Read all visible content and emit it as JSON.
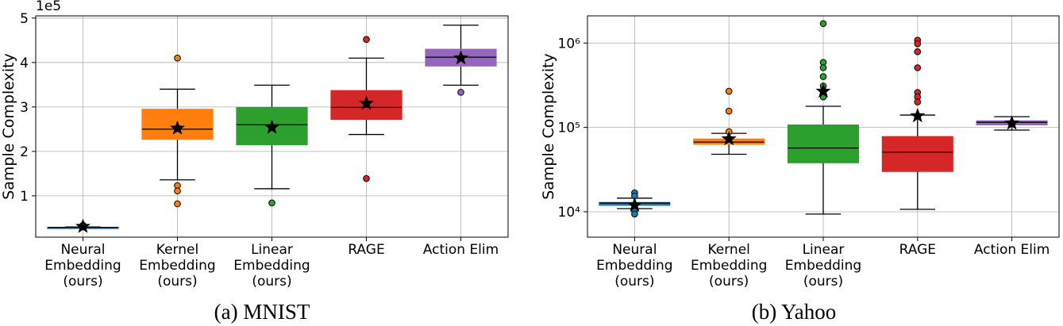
{
  "chart_data": [
    {
      "type": "box",
      "caption": "(a) MNIST",
      "ylabel": "Sample Complexity",
      "offset_text": "1e5",
      "yscale": "linear",
      "grid": true,
      "ylim": [
        0.07,
        5.05
      ],
      "yticks": [
        1,
        2,
        3,
        4,
        5
      ],
      "categories": [
        "Neural\nEmbedding\n(ours)",
        "Kernel\nEmbedding\n(ours)",
        "Linear\nEmbedding\n(ours)",
        "RAGE",
        "Action Elim"
      ],
      "boxes": [
        {
          "color": "#1f77b4",
          "whislo": 0.27,
          "q1": 0.28,
          "med": 0.29,
          "q3": 0.29,
          "whishi": 0.3,
          "mean": 0.31,
          "fliers": [
            0.34,
            0.33
          ]
        },
        {
          "color": "#ff7f0e",
          "whislo": 1.36,
          "q1": 2.27,
          "med": 2.5,
          "q3": 2.95,
          "whishi": 3.4,
          "mean": 2.52,
          "fliers": [
            4.1,
            1.23,
            1.11,
            0.82
          ]
        },
        {
          "color": "#2ca02c",
          "whislo": 1.16,
          "q1": 2.15,
          "med": 2.6,
          "q3": 2.99,
          "whishi": 3.49,
          "mean": 2.54,
          "fliers": [
            0.84
          ]
        },
        {
          "color": "#d62728",
          "whislo": 2.38,
          "q1": 2.72,
          "med": 2.99,
          "q3": 3.37,
          "whishi": 4.1,
          "mean": 3.08,
          "fliers": [
            4.52,
            1.39
          ]
        },
        {
          "color": "#9467bd",
          "whislo": 3.49,
          "q1": 3.92,
          "med": 4.12,
          "q3": 4.3,
          "whishi": 4.84,
          "mean": 4.1,
          "fliers": [
            3.33
          ]
        }
      ]
    },
    {
      "type": "box",
      "caption": "(b) Yahoo",
      "ylabel": "Sample Complexity",
      "yscale": "log",
      "grid": true,
      "ylim": [
        5000,
        2100000
      ],
      "yticks": [
        {
          "value": 10000,
          "label": "10⁴"
        },
        {
          "value": 100000,
          "label": "10⁵"
        },
        {
          "value": 1000000,
          "label": "10⁶"
        }
      ],
      "categories": [
        "Neural\nEmbedding\n(ours)",
        "Kernel\nEmbedding\n(ours)",
        "Linear\nEmbedding\n(ours)",
        "RAGE",
        "Action Elim"
      ],
      "boxes": [
        {
          "color": "#1f77b4",
          "whislo": 10900,
          "q1": 11900,
          "med": 12700,
          "q3": 12900,
          "whishi": 14500,
          "mean": 12000,
          "fliers": [
            16800,
            15400,
            10200,
            9400
          ]
        },
        {
          "color": "#ff7f0e",
          "whislo": 48000,
          "q1": 63000,
          "med": 67000,
          "q3": 73000,
          "whishi": 85000,
          "mean": 73000,
          "fliers": [
            268000,
            156000,
            89000
          ]
        },
        {
          "color": "#2ca02c",
          "whislo": 9400,
          "q1": 38000,
          "med": 57000,
          "q3": 107000,
          "whishi": 178000,
          "mean": 268000,
          "fliers": [
            1700000,
            590000,
            510000,
            400000,
            310000,
            270000,
            230000
          ]
        },
        {
          "color": "#d62728",
          "whislo": 10700,
          "q1": 30000,
          "med": 51000,
          "q3": 78000,
          "whishi": 140000,
          "mean": 137000,
          "fliers": [
            1080000,
            980000,
            790000,
            510000,
            260000,
            230000,
            200000
          ]
        },
        {
          "color": "#9467bd",
          "whislo": 93000,
          "q1": 107000,
          "med": 115000,
          "q3": 120000,
          "whishi": 134000,
          "mean": 112000,
          "fliers": []
        }
      ]
    }
  ]
}
